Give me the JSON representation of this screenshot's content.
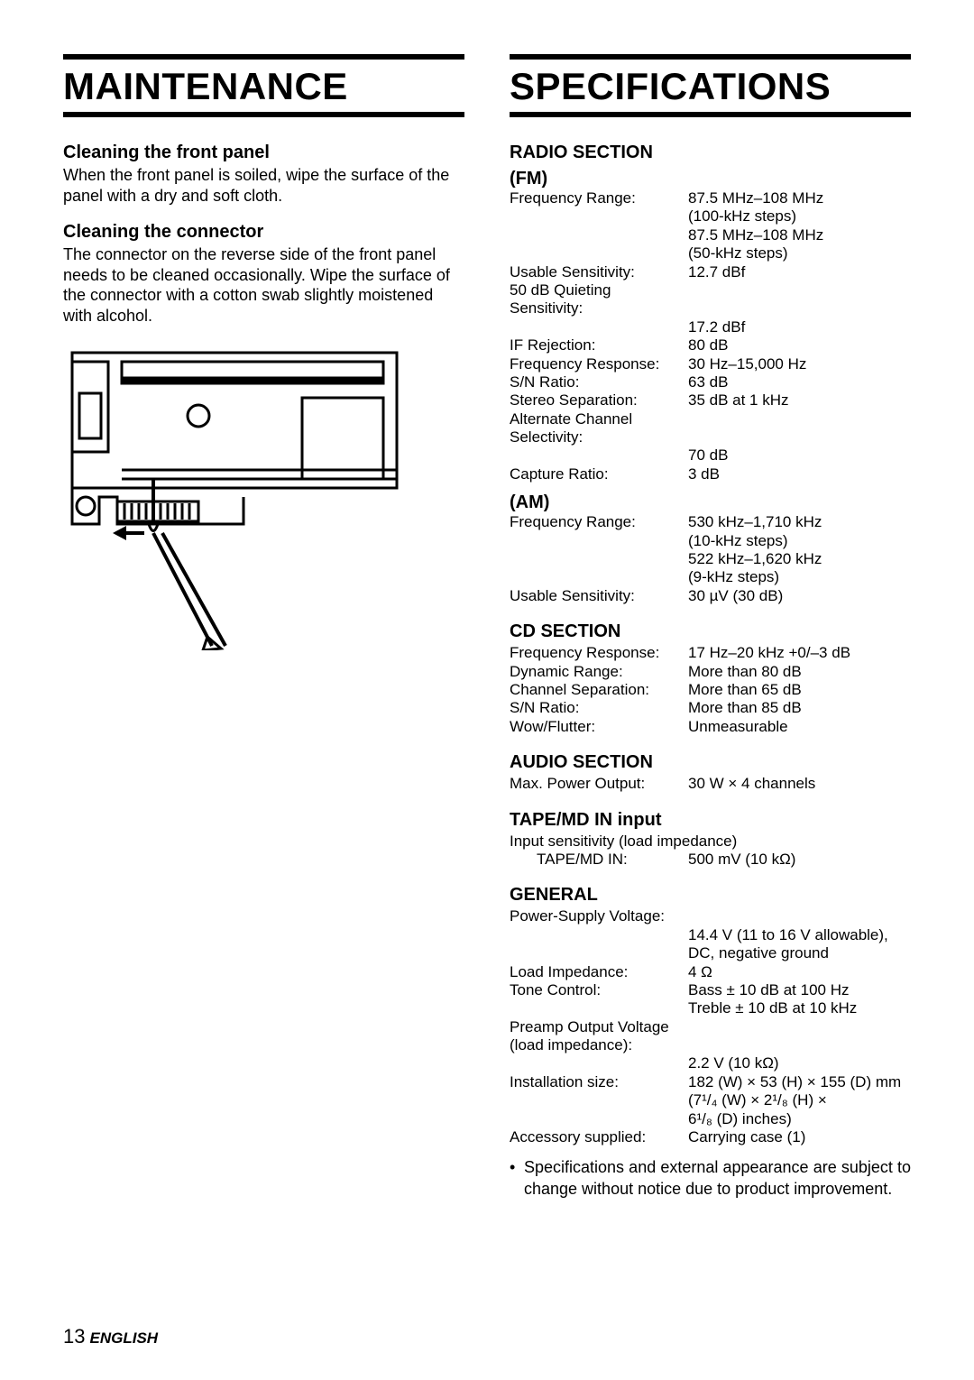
{
  "left": {
    "title": "MAINTENANCE",
    "sec1_heading": "Cleaning the front panel",
    "sec1_body": "When the front panel is soiled, wipe the surface of the panel with a dry and soft cloth.",
    "sec2_heading": "Cleaning the connector",
    "sec2_body": "The connector on the reverse side of the front panel needs to be cleaned occasionally. Wipe the surface of the connector with a cotton swab slightly moistened with alcohol."
  },
  "right": {
    "title": "SPECIFICATIONS",
    "radio": {
      "heading": "RADIO SECTION",
      "fm": {
        "label": "(FM)",
        "rows": [
          {
            "l": "Frequency Range:",
            "v": "87.5 MHz–108 MHz"
          },
          {
            "l": "",
            "v": "(100-kHz steps)"
          },
          {
            "l": "",
            "v": "87.5 MHz–108 MHz"
          },
          {
            "l": "",
            "v": "(50-kHz steps)"
          },
          {
            "l": "Usable Sensitivity:",
            "v": "12.7 dBf"
          },
          {
            "l": "50 dB Quieting Sensitivity:",
            "v": ""
          },
          {
            "l": "",
            "v": "17.2 dBf"
          },
          {
            "l": "IF Rejection:",
            "v": "80 dB"
          },
          {
            "l": "Frequency Response:",
            "v": "30 Hz–15,000 Hz"
          },
          {
            "l": "S/N Ratio:",
            "v": "63 dB"
          },
          {
            "l": "Stereo Separation:",
            "v": "35 dB at 1 kHz"
          },
          {
            "l": "Alternate Channel Selectivity:",
            "v": ""
          },
          {
            "l": "",
            "v": "70 dB"
          },
          {
            "l": "Capture Ratio:",
            "v": "3 dB"
          }
        ]
      },
      "am": {
        "label": "(AM)",
        "rows": [
          {
            "l": "Frequency Range:",
            "v": "530 kHz–1,710 kHz"
          },
          {
            "l": "",
            "v": "(10-kHz steps)"
          },
          {
            "l": "",
            "v": "522 kHz–1,620 kHz"
          },
          {
            "l": "",
            "v": "(9-kHz steps)"
          },
          {
            "l": "Usable Sensitivity:",
            "v": "30 µV (30 dB)"
          }
        ]
      }
    },
    "cd": {
      "heading": "CD SECTION",
      "rows": [
        {
          "l": "Frequency Response:",
          "v": "17 Hz–20 kHz +0/–3 dB"
        },
        {
          "l": "Dynamic Range:",
          "v": "More than 80 dB"
        },
        {
          "l": "Channel Separation:",
          "v": "More than 65 dB"
        },
        {
          "l": "S/N Ratio:",
          "v": "More than 85 dB"
        },
        {
          "l": "Wow/Flutter:",
          "v": "Unmeasurable"
        }
      ]
    },
    "audio": {
      "heading": "AUDIO SECTION",
      "rows": [
        {
          "l": "Max. Power Output:",
          "v": "30 W × 4 channels"
        }
      ]
    },
    "tape": {
      "heading": "TAPE/MD IN input",
      "intro": "Input sensitivity (load impedance)",
      "rows": [
        {
          "l": "TAPE/MD IN:",
          "v": "500 mV (10 kΩ)",
          "indent": true
        }
      ]
    },
    "general": {
      "heading": "GENERAL",
      "rows": [
        {
          "l": "Power-Supply Voltage:",
          "v": ""
        },
        {
          "l": "",
          "v": "14.4 V (11 to 16 V allowable),"
        },
        {
          "l": "",
          "v": "DC, negative ground"
        },
        {
          "l": "Load Impedance:",
          "v": "4 Ω"
        },
        {
          "l": "Tone Control:",
          "v": "Bass ± 10 dB at 100 Hz"
        },
        {
          "l": "",
          "v": "Treble ± 10 dB at 10 kHz"
        },
        {
          "l": "Preamp Output Voltage (load impedance):",
          "v": ""
        },
        {
          "l": "",
          "v": "2.2 V (10 kΩ)"
        },
        {
          "l": "Installation size:",
          "v": "182 (W) × 53 (H) × 155 (D) mm"
        },
        {
          "l": "",
          "v": "(7¹/₄ (W) × 2¹/₈ (H) ×"
        },
        {
          "l": "",
          "v": "6¹/₈ (D) inches)"
        },
        {
          "l": "Accessory supplied:",
          "v": "Carrying case (1)"
        }
      ]
    },
    "note": "Specifications and external appearance are subject to change without notice due to product improvement."
  },
  "footer": {
    "page": "13",
    "lang": "ENGLISH"
  },
  "diagram": {
    "stroke": "#000000",
    "bg": "#ffffff"
  }
}
